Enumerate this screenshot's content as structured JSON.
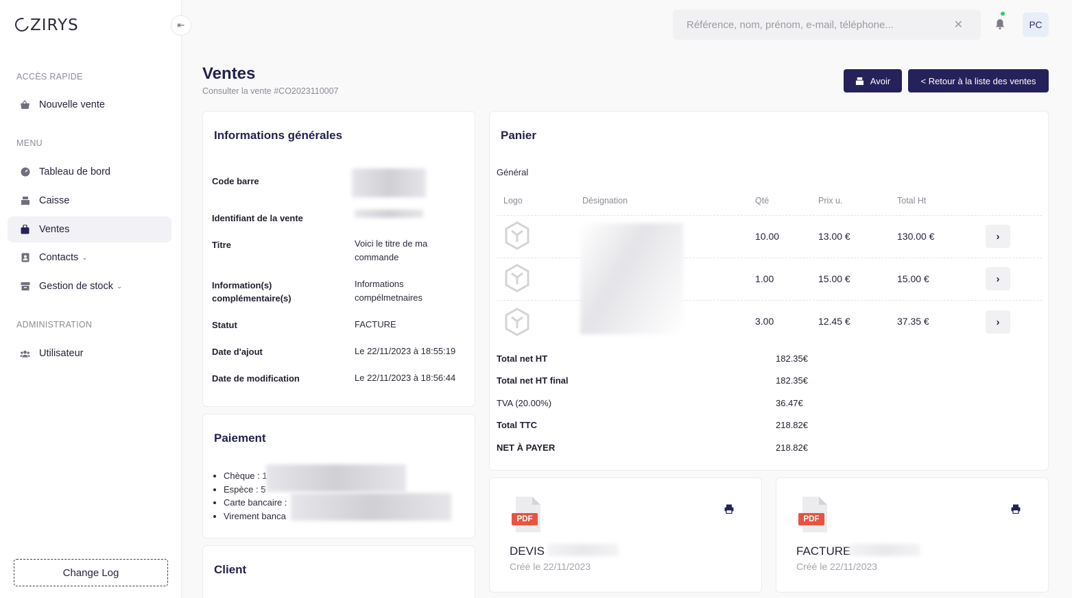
{
  "app": {
    "logo": "ZIRYS"
  },
  "sidebar": {
    "collapse_icon": "⇤",
    "quick_access_label": "ACCÈS RAPIDE",
    "quick_items": [
      {
        "label": "Nouvelle vente",
        "icon": "basket-icon"
      }
    ],
    "menu_label": "MENU",
    "menu_items": [
      {
        "label": "Tableau de bord",
        "icon": "dashboard-icon"
      },
      {
        "label": "Caisse",
        "icon": "cash-register-icon"
      },
      {
        "label": "Ventes",
        "icon": "bag-icon",
        "active": true
      },
      {
        "label": "Contacts",
        "icon": "contacts-icon",
        "chevron": "⌄"
      },
      {
        "label": "Gestion de stock",
        "icon": "box-icon",
        "chevron": "⌄"
      }
    ],
    "admin_label": "ADMINISTRATION",
    "admin_items": [
      {
        "label": "Utilisateur",
        "icon": "users-icon"
      }
    ],
    "changelog_label": "Change Log"
  },
  "topbar": {
    "search_placeholder": "Référence, nom, prénom, e-mail, téléphone...",
    "clear_icon": "✕",
    "avatar_initials": "PC"
  },
  "header": {
    "title": "Ventes",
    "subtitle": "Consulter la vente #CO2023110007",
    "avoir_label": "Avoir",
    "back_label": "< Retour à la liste des ventes"
  },
  "info": {
    "title": "Informations générales",
    "rows": [
      {
        "label": "Code barre",
        "value": ""
      },
      {
        "label": "Identifiant de la vente",
        "value": ""
      },
      {
        "label": "Titre",
        "value": "Voici le titre de ma commande"
      },
      {
        "label": "Information(s) complémentaire(s)",
        "value": "Informations compélmetnaires"
      },
      {
        "label": "Statut",
        "value": "FACTURE"
      },
      {
        "label": "Date d'ajout",
        "value": "Le 22/11/2023 à 18:55:19"
      },
      {
        "label": "Date de modification",
        "value": "Le 22/11/2023 à 18:56:44"
      }
    ]
  },
  "payment": {
    "title": "Paiement",
    "items": [
      "Chèque : 1",
      "Espèce : 5",
      "Carte bancaire :",
      "Virement banca"
    ]
  },
  "client": {
    "title": "Client"
  },
  "cart": {
    "title": "Panier",
    "subtitle": "Général",
    "headers": {
      "logo": "Logo",
      "designation": "Désignation",
      "qty": "Qté",
      "unit_price": "Prix u.",
      "total": "Total Ht"
    },
    "rows": [
      {
        "qty": "10.00",
        "unit_price": "13.00 €",
        "total": "130.00 €"
      },
      {
        "qty": "1.00",
        "unit_price": "15.00 €",
        "total": "15.00 €"
      },
      {
        "qty": "3.00",
        "unit_price": "12.45 €",
        "total": "37.35 €"
      }
    ],
    "row_button_icon": "›",
    "totals": [
      {
        "label": "Total net HT",
        "value": "182.35€",
        "bold": true
      },
      {
        "label": "Total net HT final",
        "value": "182.35€",
        "bold": true
      },
      {
        "label": "TVA (20.00%)",
        "value": "36.47€",
        "bold": false
      },
      {
        "label": "Total TTC",
        "value": "218.82€",
        "bold": true
      },
      {
        "label": "NET À PAYER",
        "value": "218.82€",
        "bold": true
      }
    ]
  },
  "documents": [
    {
      "name": "DEVIS",
      "date": "Créé le 22/11/2023",
      "badge": "PDF"
    },
    {
      "name": "FACTURE",
      "date": "Créé le 22/11/2023",
      "badge": "PDF"
    }
  ],
  "colors": {
    "primary": "#25215a",
    "pdf_red": "#e8543f",
    "active_bg": "#f1f1f6"
  }
}
